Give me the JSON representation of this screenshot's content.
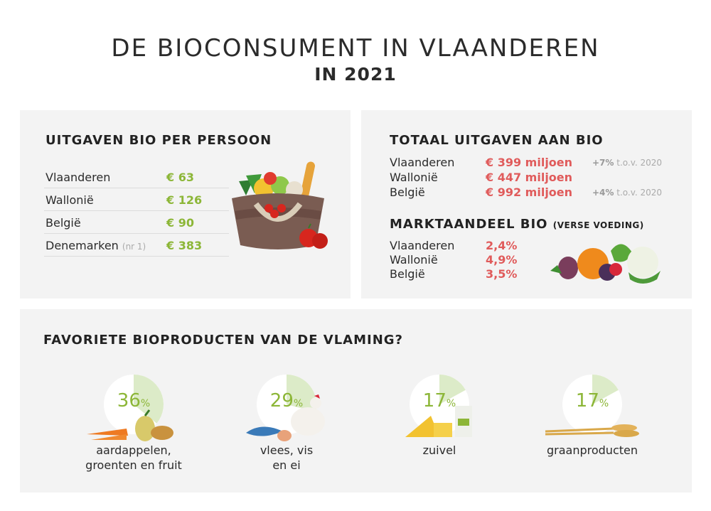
{
  "header": {
    "title": "DE BIOCONSUMENT IN VLAANDEREN",
    "year": "IN 2021"
  },
  "spend_per_person": {
    "heading": "UITGAVEN BIO PER PERSOON",
    "rows": [
      {
        "label": "Vlaanderen",
        "note": "",
        "value": "€ 63"
      },
      {
        "label": "Wallonië",
        "note": "",
        "value": "€ 126"
      },
      {
        "label": "België",
        "note": "",
        "value": "€ 90"
      },
      {
        "label": "Denemarken",
        "note": "(nr 1)",
        "value": "€ 383"
      }
    ]
  },
  "total_spend": {
    "heading": "TOTAAL UITGAVEN AAN BIO",
    "rows": [
      {
        "label": "Vlaanderen",
        "value": "€ 399 miljoen",
        "change": "+7%",
        "change_suffix": "t.o.v. 2020"
      },
      {
        "label": "Wallonië",
        "value": "€ 447 miljoen",
        "change": "",
        "change_suffix": ""
      },
      {
        "label": "België",
        "value": "€ 992 miljoen",
        "change": "+4%",
        "change_suffix": "t.o.v. 2020"
      }
    ]
  },
  "market_share": {
    "heading": "MARKTAANDEEL BIO",
    "heading_small": "(VERSE VOEDING)",
    "rows": [
      {
        "label": "Vlaanderen",
        "value": "2,4%"
      },
      {
        "label": "Wallonië",
        "value": "4,9%"
      },
      {
        "label": "België",
        "value": "3,5%"
      }
    ]
  },
  "favorites": {
    "heading": "FAVORIETE BIOPRODUCTEN VAN DE VLAMING?",
    "percent_sign": "%"
  },
  "colors": {
    "green": "#8cb637",
    "red": "#e05b5b",
    "pie_fill": "#dcebc8",
    "panel_bg": "#f3f3f3"
  },
  "chart_data": {
    "type": "pie",
    "title": "FAVORIETE BIOPRODUCTEN VAN DE VLAMING?",
    "unit": "%",
    "categories": [
      "aardappelen, groenten en fruit",
      "vlees, vis en ei",
      "zuivel",
      "graanproducten"
    ],
    "values": [
      36,
      29,
      17,
      17
    ],
    "items": [
      {
        "value": 36,
        "caption_lines": [
          "aardappelen,",
          "groenten en fruit"
        ]
      },
      {
        "value": 29,
        "caption_lines": [
          "vlees, vis",
          "en ei"
        ]
      },
      {
        "value": 17,
        "caption_lines": [
          "zuivel"
        ]
      },
      {
        "value": 17,
        "caption_lines": [
          "graanproducten"
        ]
      }
    ]
  }
}
